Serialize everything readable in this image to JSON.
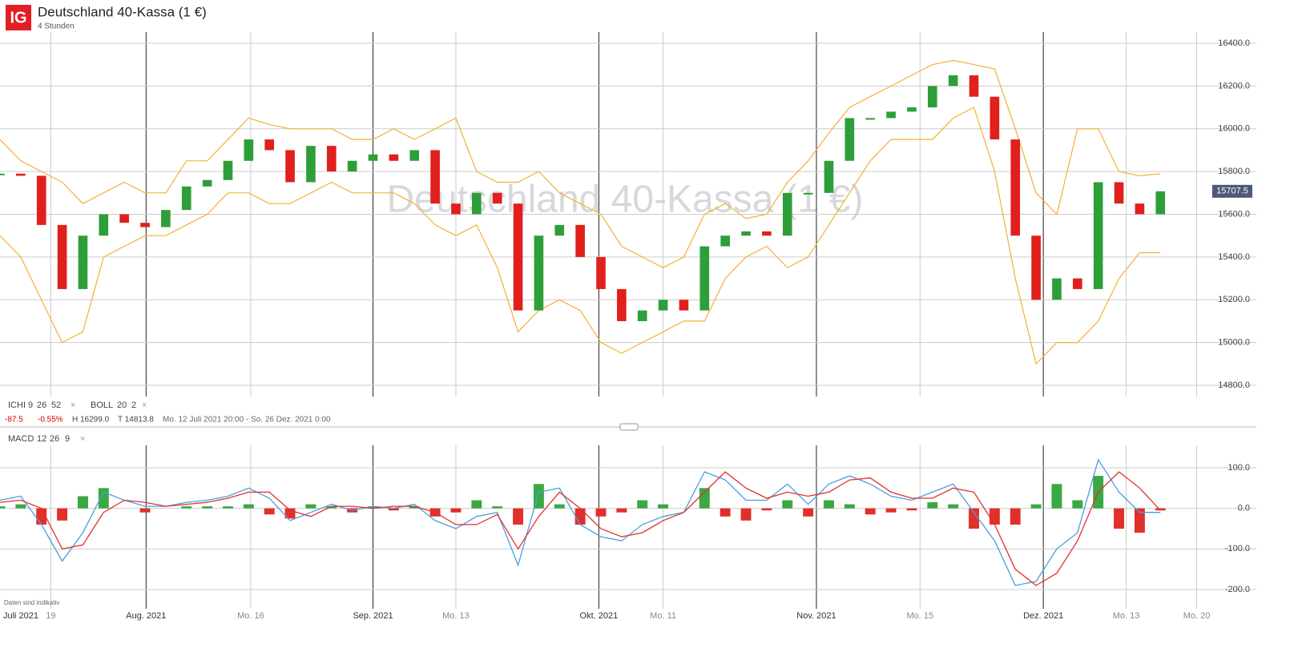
{
  "header": {
    "logo": "IG",
    "disclaimer": "Daten sind indikativ"
  },
  "legend": {
    "ichimoku": "ICHI",
    "ichimoku_params": [
      "9",
      "26",
      "52"
    ],
    "bollinger": "BOLL",
    "bollinger_params": [
      "20",
      "2"
    ],
    "macd": "MACD",
    "macd_params": [
      "12",
      "26",
      "9"
    ],
    "change": "-87.5",
    "change_pct": "-0.55%",
    "high": "H 16299.0",
    "low": "T 14813.8",
    "range": "Mo. 12 Juli 2021 20:00 - So. 26 Dez. 2021 0:00"
  },
  "chart_data": [
    {
      "type": "candlestick",
      "title": "Deutschland 40-Kassa (1 €)",
      "subtitle": "4 Stunden",
      "x": [
        0,
        2,
        4,
        6,
        8,
        10,
        12,
        14,
        16,
        18,
        20,
        22,
        24,
        26,
        28,
        30,
        32,
        34,
        36,
        38,
        40,
        42,
        44,
        46,
        48,
        50,
        52,
        54,
        56,
        58,
        60,
        62,
        64,
        66,
        68,
        70,
        72,
        74,
        76,
        78,
        80,
        82,
        84,
        86,
        88,
        90,
        92,
        94,
        96,
        98,
        100,
        102,
        104,
        106,
        108,
        110,
        112
      ],
      "values": [
        15790,
        15780,
        15550,
        15250,
        15500,
        15600,
        15560,
        15540,
        15620,
        15730,
        15760,
        15850,
        15950,
        15900,
        15750,
        15920,
        15800,
        15850,
        15880,
        15850,
        15900,
        15650,
        15600,
        15700,
        15650,
        15150,
        15500,
        15550,
        15400,
        15250,
        15100,
        15150,
        15200,
        15150,
        15450,
        15500,
        15520,
        15500,
        15700,
        15700,
        15850,
        16050,
        16050,
        16080,
        16100,
        16200,
        16250,
        16150,
        15950,
        15500,
        15200,
        15300,
        15250,
        15750,
        15650,
        15600,
        15707.5
      ],
      "up_color": "#2e9e3a",
      "down_color": "#e0201c",
      "bands": [
        {
          "color": "#f2b134",
          "values": [
            15950,
            15850,
            15800,
            15750,
            15650,
            15700,
            15750,
            15700,
            15700,
            15850,
            15850,
            15950,
            16050,
            16020,
            16000,
            16000,
            16000,
            15950,
            15950,
            16000,
            15950,
            16000,
            16050,
            15800,
            15750,
            15750,
            15800,
            15700,
            15650,
            15600,
            15450,
            15400,
            15350,
            15400,
            15600,
            15650,
            15580,
            15600,
            15750,
            15850,
            15980,
            16100,
            16150,
            16200,
            16250,
            16300,
            16320,
            16300,
            16280,
            16000,
            15700,
            15600,
            16000,
            16000,
            15800,
            15780,
            15790
          ]
        },
        {
          "color": "#f2b134",
          "values": [
            15500,
            15400,
            15200,
            15000,
            15050,
            15400,
            15450,
            15500,
            15500,
            15550,
            15600,
            15700,
            15700,
            15650,
            15650,
            15700,
            15750,
            15700,
            15700,
            15700,
            15650,
            15550,
            15500,
            15550,
            15350,
            15050,
            15150,
            15200,
            15150,
            15000,
            14950,
            15000,
            15050,
            15100,
            15100,
            15300,
            15400,
            15450,
            15350,
            15400,
            15550,
            15700,
            15850,
            15950,
            15950,
            15950,
            16050,
            16100,
            15800,
            15300,
            14900,
            15000,
            15000,
            15100,
            15300,
            15420,
            15420
          ]
        }
      ],
      "xlim": [
        0,
        116
      ],
      "ylim": [
        14800,
        16400
      ],
      "yticks": [
        {
          "value": 14800,
          "label": "14800.0"
        },
        {
          "value": 15000,
          "label": "15000.0"
        },
        {
          "value": 15200,
          "label": "15200.0"
        },
        {
          "value": 15400,
          "label": "15400.0"
        },
        {
          "value": 15600,
          "label": "15600.0"
        },
        {
          "value": 15800,
          "label": "15800.0"
        },
        {
          "value": 16000,
          "label": "16000.0"
        },
        {
          "value": 16200,
          "label": "16200.0"
        },
        {
          "value": 16400,
          "label": "16400.0"
        }
      ],
      "grid": true
    },
    {
      "type": "macd",
      "x": [
        0,
        2,
        4,
        6,
        8,
        10,
        12,
        14,
        16,
        18,
        20,
        22,
        24,
        26,
        28,
        30,
        32,
        34,
        36,
        38,
        40,
        42,
        44,
        46,
        48,
        50,
        52,
        54,
        56,
        58,
        60,
        62,
        64,
        66,
        68,
        70,
        72,
        74,
        76,
        78,
        80,
        82,
        84,
        86,
        88,
        90,
        92,
        94,
        96,
        98,
        100,
        102,
        104,
        106,
        108,
        110,
        112
      ],
      "series": [
        {
          "color": "#4a9ee0",
          "values": [
            20,
            30,
            -40,
            -130,
            -60,
            40,
            20,
            5,
            5,
            15,
            20,
            30,
            50,
            25,
            -30,
            -10,
            10,
            -5,
            5,
            0,
            10,
            -30,
            -50,
            -20,
            -10,
            -140,
            40,
            50,
            -40,
            -70,
            -80,
            -40,
            -20,
            -10,
            90,
            70,
            20,
            20,
            60,
            10,
            60,
            80,
            60,
            30,
            20,
            40,
            60,
            -10,
            -80,
            -190,
            -180,
            -100,
            -60,
            120,
            40,
            -10,
            -10
          ]
        },
        {
          "color": "#e0302a",
          "values": [
            15,
            20,
            0,
            -100,
            -90,
            -10,
            20,
            15,
            5,
            10,
            15,
            25,
            40,
            40,
            -5,
            -20,
            5,
            5,
            0,
            5,
            5,
            -10,
            -40,
            -40,
            -15,
            -100,
            -20,
            40,
            0,
            -50,
            -70,
            -60,
            -30,
            -10,
            40,
            90,
            50,
            25,
            40,
            30,
            40,
            70,
            75,
            40,
            25,
            25,
            50,
            40,
            -40,
            -150,
            -190,
            -160,
            -80,
            40,
            90,
            50,
            -5
          ]
        }
      ],
      "histogram": {
        "up_color": "#3aa843",
        "down_color": "#e0302a",
        "values": [
          5,
          10,
          -40,
          -30,
          30,
          50,
          0,
          -10,
          0,
          5,
          5,
          5,
          10,
          -15,
          -25,
          10,
          5,
          -10,
          5,
          -5,
          5,
          -20,
          -10,
          20,
          5,
          -40,
          60,
          10,
          -40,
          -20,
          -10,
          20,
          10,
          0,
          50,
          -20,
          -30,
          -5,
          20,
          -20,
          20,
          10,
          -15,
          -10,
          -5,
          15,
          10,
          -50,
          -40,
          -40,
          10,
          60,
          20,
          80,
          -50,
          -60,
          -5
        ]
      },
      "xlim": [
        0,
        116
      ],
      "ylim": [
        -200,
        100
      ],
      "yticks": [
        {
          "value": -200,
          "label": "-200.0"
        },
        {
          "value": -100,
          "label": "-100.0"
        },
        {
          "value": 0,
          "label": "0.0"
        },
        {
          "value": 100,
          "label": "100.0"
        }
      ],
      "xticks_months": [
        {
          "value": 1.7,
          "label": "Juli 2021"
        },
        {
          "value": 14.1,
          "label": "Aug. 2021"
        },
        {
          "value": 36.0,
          "label": "Sep. 2021"
        },
        {
          "value": 57.8,
          "label": "Okt. 2021"
        },
        {
          "value": 78.8,
          "label": "Nov. 2021"
        },
        {
          "value": 100.7,
          "label": "Dez. 2021"
        }
      ],
      "xticks": [
        {
          "value": 4.9,
          "label": "19"
        },
        {
          "value": 24.2,
          "label": "Mo. 16"
        },
        {
          "value": 44.0,
          "label": "Mo. 13"
        },
        {
          "value": 64.0,
          "label": "Mo. 11"
        },
        {
          "value": 88.8,
          "label": "Mo. 15"
        },
        {
          "value": 108.7,
          "label": "Mo. 13"
        },
        {
          "value": 115.5,
          "label": "Mo. 20"
        }
      ],
      "grid": true
    }
  ]
}
